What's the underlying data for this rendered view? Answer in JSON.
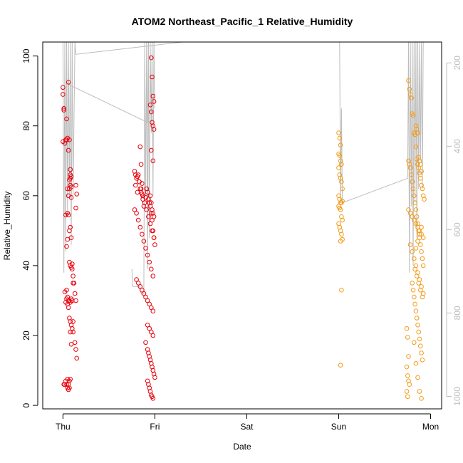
{
  "chart_data": {
    "type": "scatter",
    "title": "ATOM2 Northeast_Pacific_1 Relative_Humidity",
    "xlabel": "Date",
    "ylabel": "Relative_Humidity",
    "x_ticks": [
      {
        "label": "Thu",
        "day": 0
      },
      {
        "label": "Fri",
        "day": 1
      },
      {
        "label": "Sat",
        "day": 2
      },
      {
        "label": "Sun",
        "day": 3
      },
      {
        "label": "Mon",
        "day": 4
      }
    ],
    "xlim_days": [
      -0.22,
      4.12
    ],
    "ylim": [
      -1,
      104
    ],
    "y_ticks": [
      0,
      20,
      40,
      60,
      80,
      100
    ],
    "right_axis": {
      "ticks": [
        200,
        400,
        600,
        800,
        1000
      ],
      "lim": [
        1030,
        150
      ],
      "color": "#bdbdbd"
    },
    "grid": false,
    "colors": {
      "series1": "#e8000b",
      "series2": "#f39c1a",
      "line": "#bdbdbd"
    },
    "series": [
      {
        "color": "#e8000b",
        "x": [
          0.0,
          0.0,
          0.01,
          0.01,
          0.0,
          0.02,
          0.04,
          0.03,
          0.05,
          0.04,
          0.06,
          0.05,
          0.07,
          0.08,
          0.06,
          0.08,
          0.09,
          0.07,
          0.08,
          0.09,
          0.05,
          0.06,
          0.07,
          0.08,
          0.09,
          0.1,
          0.11,
          0.13,
          0.14,
          0.15,
          0.04,
          0.05,
          0.06,
          0.07,
          0.08,
          0.09,
          0.1,
          0.11,
          0.08,
          0.09,
          0.01,
          0.02,
          0.03,
          0.04,
          0.05,
          0.06,
          0.07,
          0.05,
          0.06,
          0.07,
          0.08,
          0.14,
          0.15,
          0.14,
          0.03,
          0.04,
          0.05,
          0.07,
          0.08,
          0.09,
          0.1,
          0.11,
          0.12,
          0.13,
          0.14,
          0.02,
          0.03,
          0.04,
          0.05,
          0.06,
          0.07,
          0.08,
          0.09,
          0.1,
          0.11,
          0.06,
          0.07,
          0.08,
          0.09
        ],
        "y": [
          91,
          89,
          85,
          84.5,
          75.5,
          75,
          82,
          76,
          76.5,
          76,
          73,
          62,
          62,
          65,
          60,
          66,
          65.5,
          64.5,
          63,
          62.5,
          55,
          54.5,
          41,
          40,
          39.5,
          39,
          35,
          18,
          16,
          13.5,
          33,
          31,
          30,
          30,
          29.5,
          30.5,
          30,
          24,
          21,
          17.5,
          6,
          6,
          7,
          6,
          7.5,
          6,
          5,
          5,
          4.5,
          7,
          7.5,
          63,
          60.5,
          56.5,
          54.5,
          45.5,
          47.5,
          50,
          51,
          48,
          40.5,
          37,
          35,
          32,
          30,
          32.5,
          29.5,
          30.5,
          29,
          28,
          25,
          24,
          23,
          22,
          21,
          92.5,
          76,
          67.5,
          59.5
        ]
      },
      {
        "color": "#e8000b",
        "x": [
          0.78,
          0.79,
          0.8,
          0.81,
          0.82,
          0.83,
          0.84,
          0.85,
          0.86,
          0.87,
          0.88,
          0.89,
          0.9,
          0.91,
          0.92,
          0.93,
          0.94,
          0.95,
          0.96,
          0.97,
          0.98,
          0.99,
          1.0,
          0.79,
          0.81,
          0.83,
          0.85,
          0.87,
          0.89,
          0.91,
          0.93,
          0.95,
          0.97,
          0.99,
          0.78,
          0.8,
          0.82,
          0.84,
          0.86,
          0.88,
          0.9,
          0.92,
          0.94,
          0.96,
          0.98,
          0.8,
          0.82,
          0.84,
          0.86,
          0.88,
          0.9,
          0.92,
          0.94,
          0.96,
          0.98,
          0.95,
          0.96,
          0.97,
          0.98,
          0.99,
          0.9,
          0.92,
          0.93,
          0.94,
          0.95,
          0.96,
          0.97,
          0.98,
          0.99,
          1.0,
          0.92,
          0.93,
          0.94,
          0.95,
          0.96,
          0.97,
          0.98,
          0.92,
          0.94,
          0.96,
          0.98,
          0.96,
          0.97,
          0.98,
          0.99,
          0.95,
          0.96,
          0.97,
          0.98,
          0.99,
          0.96,
          0.98,
          0.84,
          0.85,
          0.86,
          0.87
        ],
        "y": [
          67,
          66,
          65,
          65.5,
          66,
          64,
          62,
          61,
          60.5,
          59,
          57,
          58,
          59.5,
          62,
          61,
          59,
          58,
          57,
          55,
          53,
          50,
          48,
          46,
          63,
          61,
          64,
          62,
          60,
          58,
          56,
          54,
          52,
          50,
          48,
          56,
          55,
          53,
          51,
          49,
          47,
          45,
          43,
          41,
          39,
          37,
          36,
          35,
          34,
          33,
          32,
          31,
          30,
          29,
          28,
          27,
          60,
          58,
          56,
          55,
          54,
          18,
          16,
          15,
          14,
          13,
          12,
          11,
          10,
          9,
          8,
          7,
          6,
          5,
          4,
          3,
          2.5,
          2,
          23,
          22,
          21,
          20,
          99.5,
          94,
          88.5,
          87,
          86,
          84,
          81,
          80,
          79,
          73,
          70,
          74,
          69,
          63.5,
          60
        ]
      },
      {
        "color": "#f39c1a",
        "x": [
          3.0,
          3.01,
          3.02,
          3.0,
          3.01,
          3.02,
          3.03,
          3.0,
          3.01,
          3.02,
          3.03,
          3.04,
          3.0,
          3.01,
          3.02,
          3.03,
          3.0,
          3.01,
          3.02,
          3.03,
          3.04,
          3.0,
          3.01,
          3.02,
          3.03,
          3.04,
          3.02,
          3.03,
          3.02,
          3.04
        ],
        "y": [
          78,
          76.5,
          74.5,
          72,
          71.5,
          70,
          69,
          68,
          66,
          65,
          64,
          62,
          60,
          59,
          58,
          58,
          57,
          56.5,
          56,
          54,
          53,
          52,
          51,
          50,
          49,
          47.5,
          47,
          33,
          11.5,
          58.5
        ]
      },
      {
        "color": "#f39c1a",
        "x": [
          3.74,
          3.75,
          3.76,
          3.74,
          3.75,
          3.76,
          3.77,
          3.74,
          3.75,
          3.76,
          3.77,
          3.78,
          3.79,
          3.8,
          3.81,
          3.82,
          3.83,
          3.84,
          3.85,
          3.86,
          3.87,
          3.88,
          3.89,
          3.9,
          3.91,
          3.92,
          3.93,
          3.76,
          3.77,
          3.78,
          3.79,
          3.8,
          3.81,
          3.82,
          3.83,
          3.84,
          3.85,
          3.86,
          3.87,
          3.88,
          3.89,
          3.9,
          3.91,
          3.92,
          3.76,
          3.78,
          3.8,
          3.82,
          3.84,
          3.86,
          3.88,
          3.9,
          3.92,
          3.78,
          3.8,
          3.82,
          3.84,
          3.86,
          3.88,
          3.9,
          3.92,
          3.8,
          3.81,
          3.82,
          3.83,
          3.84,
          3.85,
          3.86,
          3.87,
          3.88,
          3.89,
          3.9,
          3.91,
          3.84,
          3.85,
          3.86,
          3.87,
          3.88,
          3.89,
          3.9,
          3.84,
          3.86,
          3.88,
          3.9,
          3.83,
          3.85,
          3.87,
          3.89,
          3.91,
          3.82,
          3.84,
          3.86,
          3.88,
          3.9
        ],
        "y": [
          22,
          19.5,
          14,
          11,
          8.5,
          7,
          6,
          4,
          2.5,
          93,
          90.5,
          89,
          88,
          83.5,
          83,
          78,
          77.5,
          74,
          70.5,
          69,
          68,
          66.5,
          65,
          63,
          62,
          60,
          59,
          70,
          69,
          68,
          66,
          64,
          62,
          60,
          58,
          56,
          54,
          52,
          50,
          48,
          46,
          44,
          42,
          40,
          56,
          55,
          54,
          53,
          52,
          51,
          50,
          49,
          48,
          46,
          44,
          42,
          40,
          38,
          36,
          34,
          32,
          35,
          33,
          31,
          29,
          27,
          25,
          23,
          21,
          19,
          17,
          15,
          13,
          80,
          79,
          78,
          71,
          70,
          69,
          67,
          45,
          47,
          49,
          51,
          39,
          37,
          35,
          33,
          31,
          18,
          12,
          8,
          4,
          2
        ]
      }
    ],
    "lines": [
      [
        [
          0.0,
          104
        ],
        [
          0.01,
          38
        ],
        [
          0.02,
          104
        ],
        [
          0.03,
          44
        ],
        [
          0.04,
          104
        ],
        [
          0.05,
          55
        ],
        [
          0.06,
          104
        ],
        [
          0.07,
          60
        ],
        [
          0.08,
          104
        ],
        [
          0.09,
          46
        ],
        [
          0.1,
          104
        ],
        [
          0.11,
          60
        ],
        [
          0.13,
          104
        ],
        [
          0.14,
          100.5
        ],
        [
          1.3,
          104
        ]
      ],
      [
        [
          0.05,
          92
        ],
        [
          0.92,
          81
        ],
        [
          0.93,
          104
        ]
      ],
      [
        [
          0.75,
          39
        ],
        [
          0.76,
          34
        ],
        [
          0.83,
          34
        ],
        [
          0.85,
          32
        ],
        [
          0.88,
          32
        ],
        [
          0.89,
          104
        ],
        [
          0.9,
          60
        ],
        [
          0.91,
          104
        ],
        [
          0.92,
          39
        ],
        [
          0.93,
          104
        ],
        [
          0.94,
          48
        ],
        [
          0.95,
          104
        ],
        [
          0.96,
          78
        ],
        [
          0.97,
          104
        ],
        [
          0.98,
          60
        ],
        [
          0.99,
          104
        ],
        [
          1.0,
          85
        ]
      ],
      [
        [
          3.01,
          104
        ],
        [
          3.02,
          58
        ],
        [
          3.03,
          85
        ],
        [
          3.04,
          58
        ],
        [
          3.75,
          65
        ],
        [
          3.76,
          104
        ],
        [
          3.77,
          38
        ],
        [
          3.78,
          104
        ],
        [
          3.79,
          57
        ],
        [
          3.8,
          104
        ],
        [
          3.81,
          40
        ],
        [
          3.82,
          104
        ],
        [
          3.83,
          58
        ],
        [
          3.84,
          104
        ],
        [
          3.85,
          48
        ],
        [
          3.86,
          104
        ],
        [
          3.87,
          62
        ],
        [
          3.88,
          104
        ],
        [
          3.89,
          70
        ],
        [
          3.9,
          104
        ],
        [
          3.91,
          62
        ],
        [
          3.92,
          104
        ]
      ]
    ]
  }
}
